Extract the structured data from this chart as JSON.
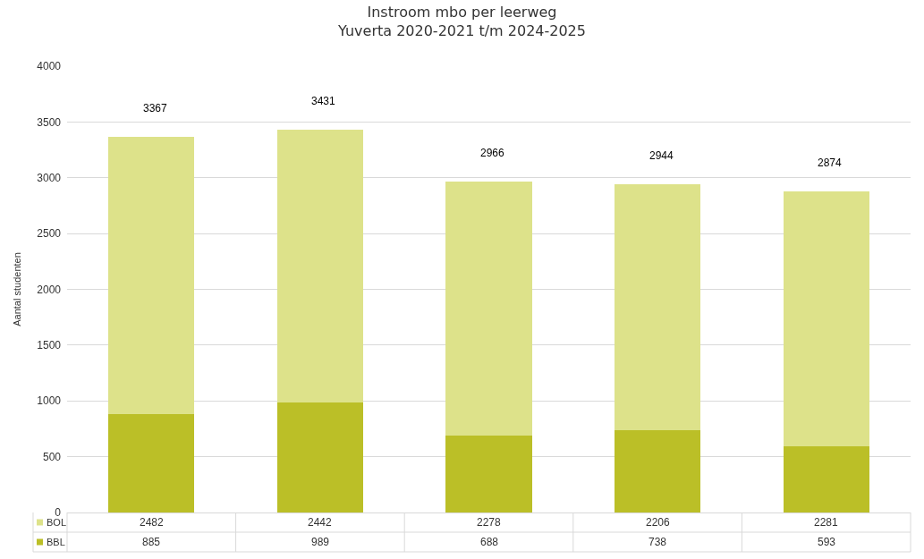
{
  "chart_data": {
    "type": "bar",
    "title": "Instroom mbo per leerweg\nYuverta 2020-2021 t/m 2024-2025",
    "ylabel": "Aantal studenten",
    "categories": [
      null,
      null,
      null,
      null,
      null
    ],
    "stacked": true,
    "series": [
      {
        "name": "BBL",
        "color": "#bbbf27",
        "values": [
          885,
          989,
          688,
          738,
          593
        ]
      },
      {
        "name": "BOL",
        "color": "#dde28a",
        "values": [
          2482,
          2442,
          2278,
          2206,
          2281
        ]
      }
    ],
    "totals": [
      "3367",
      "3431",
      "2966",
      "2944",
      "2874"
    ],
    "data_labels": true,
    "ylim": [
      0,
      4000
    ],
    "yticks": [
      0,
      500,
      1000,
      1500,
      2000,
      2500,
      3000,
      3500,
      4000
    ],
    "grid": "y",
    "legend": "bottom"
  }
}
